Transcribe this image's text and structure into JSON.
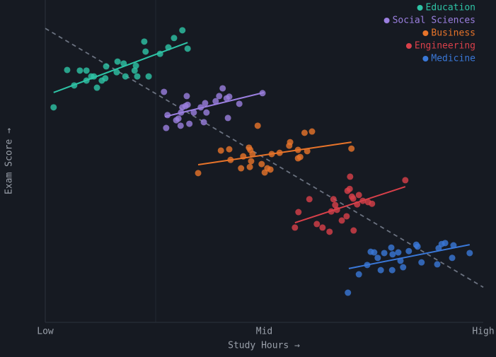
{
  "chart_data": {
    "type": "scatter",
    "x_label": "Study Hours →",
    "y_label": "Exam Score →",
    "xlim": [
      0,
      100
    ],
    "ylim": [
      0,
      100
    ],
    "xticks": [
      {
        "value": 0,
        "label": "Low"
      },
      {
        "value": 50,
        "label": "Mid"
      },
      {
        "value": 100,
        "label": "High"
      }
    ],
    "legend": "top-right",
    "overall_trend": {
      "color": "#6b7280",
      "x": [
        0,
        100
      ],
      "y": [
        91.2,
        10.9
      ]
    },
    "series": [
      {
        "name": "Education",
        "color": "#2ec4a6",
        "x": [
          1.9,
          5.0,
          6.6,
          7.9,
          9.4,
          9.4,
          10.5,
          11.1,
          11.8,
          12.9,
          13.7,
          13.9,
          16.3,
          16.5,
          17.9,
          18.3,
          20.4,
          20.7,
          21.0,
          22.6,
          22.9,
          23.6,
          26.2,
          28.1,
          29.4,
          31.3,
          32.5
        ],
        "values": [
          66.7,
          78.3,
          73.5,
          78.1,
          78.1,
          75.0,
          76.3,
          76.3,
          72.8,
          75.0,
          75.7,
          79.4,
          77.6,
          80.9,
          80.3,
          76.3,
          78.1,
          79.6,
          76.3,
          87.1,
          84.0,
          76.3,
          83.3,
          85.3,
          88.2,
          90.6,
          84.9
        ],
        "trend": {
          "x": [
            1.9,
            32.5
          ],
          "y": [
            71.3,
            86.8
          ]
        }
      },
      {
        "name": "Social Sciences",
        "color": "#9b7fe0",
        "x": [
          27.1,
          27.6,
          27.9,
          29.9,
          30.4,
          30.9,
          31.0,
          31.3,
          32.0,
          32.3,
          32.5,
          32.9,
          33.9,
          35.5,
          36.2,
          36.5,
          36.8,
          38.9,
          39.7,
          40.5,
          41.4,
          42.0,
          41.7,
          44.3,
          49.6
        ],
        "values": [
          71.5,
          60.3,
          64.3,
          62.7,
          63.2,
          61.0,
          65.1,
          66.7,
          67.1,
          70.2,
          67.5,
          61.6,
          65.1,
          66.7,
          62.1,
          68.0,
          65.1,
          68.6,
          70.2,
          72.6,
          69.5,
          70.0,
          63.4,
          67.8,
          71.1
        ],
        "trend": {
          "x": [
            27.3,
            49.9
          ],
          "y": [
            63.8,
            71.3
          ]
        }
      },
      {
        "name": "Business",
        "color": "#e8742a",
        "x": [
          34.9,
          40.1,
          42.0,
          42.3,
          44.7,
          45.2,
          46.5,
          46.8,
          46.7,
          47.0,
          47.3,
          48.5,
          49.4,
          50.1,
          50.7,
          51.4,
          51.7,
          53.5,
          55.7,
          55.9,
          57.7,
          57.7,
          58.2,
          59.2,
          59.8,
          60.9,
          69.9
        ],
        "values": [
          46.3,
          53.3,
          53.7,
          50.4,
          47.8,
          51.5,
          54.2,
          53.5,
          48.2,
          50.0,
          52.2,
          61.0,
          49.1,
          46.5,
          47.8,
          47.4,
          52.2,
          52.6,
          54.8,
          55.9,
          50.9,
          53.5,
          51.3,
          58.8,
          53.1,
          59.2,
          53.9
        ],
        "trend": {
          "x": [
            34.9,
            69.9
          ],
          "y": [
            48.9,
            55.9
          ]
        }
      },
      {
        "name": "Engineering",
        "color": "#d9404a",
        "x": [
          57.0,
          57.8,
          60.3,
          62.0,
          63.3,
          64.9,
          65.3,
          65.8,
          66.2,
          66.6,
          67.7,
          68.8,
          69.0,
          69.5,
          69.6,
          70.0,
          70.3,
          70.4,
          71.2,
          71.6,
          72.5,
          73.7,
          74.6,
          82.2
        ],
        "values": [
          29.4,
          34.2,
          38.2,
          30.5,
          29.4,
          28.1,
          34.4,
          38.2,
          36.4,
          34.9,
          31.6,
          32.9,
          40.8,
          41.4,
          45.2,
          39.0,
          38.4,
          28.5,
          36.6,
          39.5,
          37.7,
          37.3,
          36.8,
          44.1
        ],
        "trend": {
          "x": [
            57.0,
            82.2
          ],
          "y": [
            30.9,
            42.1
          ]
        }
      },
      {
        "name": "Medicine",
        "color": "#3a78d8",
        "x": [
          69.1,
          71.6,
          73.5,
          74.3,
          75.1,
          75.9,
          76.6,
          77.4,
          79.0,
          79.2,
          79.3,
          80.6,
          81.1,
          81.7,
          83.0,
          84.7,
          85.0,
          85.9,
          89.5,
          89.8,
          90.5,
          91.3,
          92.9,
          93.2,
          96.9
        ],
        "values": [
          9.2,
          14.9,
          17.8,
          21.9,
          21.7,
          20.0,
          16.2,
          21.5,
          23.2,
          16.2,
          21.1,
          21.7,
          19.1,
          17.1,
          22.1,
          24.1,
          23.5,
          18.6,
          18.0,
          23.0,
          24.3,
          24.6,
          20.0,
          23.9,
          21.5
        ],
        "trend": {
          "x": [
            69.3,
            96.9
          ],
          "y": [
            16.7,
            24.1
          ]
        }
      }
    ]
  }
}
